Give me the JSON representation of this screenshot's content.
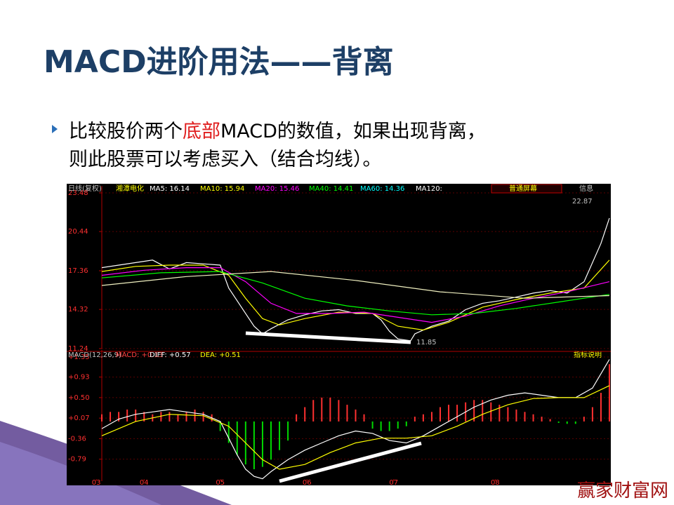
{
  "slide": {
    "title": "MACD进阶用法——背离",
    "bullet": {
      "before": "比较股价两个",
      "highlight": "底部",
      "after": "MACD的数值，如果出现背离，",
      "line2": "则此股票可以考虑买入（结合均线）。"
    },
    "watermark": "赢家财富网"
  },
  "chart_data": [
    {
      "type": "line",
      "header": [
        {
          "text": "日线(复权)",
          "color": "#c0c0c0"
        },
        {
          "text": "湘潭电化",
          "color": "#ffff00"
        },
        {
          "text": "MA5: 16.14",
          "color": "#ffffff"
        },
        {
          "text": "MA10: 15.94",
          "color": "#ffff00"
        },
        {
          "text": "MA20: 15.46",
          "color": "#ff00ff"
        },
        {
          "text": "MA40: 14.41",
          "color": "#00ff00"
        },
        {
          "text": "MA60: 14.36",
          "color": "#00ffff"
        },
        {
          "text": "MA120:",
          "color": "#ffffff"
        }
      ],
      "buttons": [
        "普通屏幕",
        "信息"
      ],
      "annotations": [
        "22.87",
        "11.85"
      ],
      "xlim": [
        0,
        120
      ],
      "ylim": [
        11.24,
        23.48
      ],
      "yticks": [
        {
          "value": 23.48,
          "label": "23.48"
        },
        {
          "value": 20.44,
          "label": "20.44"
        },
        {
          "value": 17.36,
          "label": "17.36"
        },
        {
          "value": 14.32,
          "label": "14.32"
        },
        {
          "value": 11.24,
          "label": "11.24"
        }
      ],
      "series": [
        {
          "color": "#ffffff",
          "x": [
            0,
            4,
            8,
            12,
            16,
            20,
            24,
            28,
            30,
            32,
            34,
            36,
            38,
            40,
            44,
            48,
            52,
            56,
            60,
            64,
            66,
            68,
            70,
            73,
            74,
            78,
            82,
            86,
            90,
            94,
            98,
            102,
            106,
            110,
            114,
            118,
            120
          ],
          "values": [
            17.6,
            17.8,
            18.0,
            18.2,
            17.5,
            18.0,
            17.9,
            17.8,
            16.0,
            15.0,
            14.0,
            13.0,
            12.4,
            12.8,
            13.5,
            13.9,
            14.2,
            14.3,
            14.0,
            14.0,
            13.5,
            12.6,
            12.0,
            11.85,
            12.4,
            13.0,
            13.4,
            14.3,
            14.8,
            15.0,
            15.3,
            15.6,
            15.8,
            15.6,
            16.5,
            19.5,
            21.5
          ]
        },
        {
          "color": "#ffff00",
          "x": [
            0,
            8,
            16,
            24,
            30,
            34,
            38,
            42,
            48,
            56,
            64,
            70,
            76,
            82,
            90,
            98,
            106,
            114,
            120
          ],
          "values": [
            17.3,
            17.7,
            17.8,
            17.8,
            17.0,
            15.2,
            13.6,
            13.1,
            13.6,
            14.1,
            14.0,
            13.0,
            12.7,
            13.3,
            14.5,
            15.1,
            15.6,
            16.0,
            18.2
          ]
        },
        {
          "color": "#ff00ff",
          "x": [
            0,
            10,
            20,
            28,
            34,
            40,
            46,
            54,
            62,
            70,
            78,
            86,
            94,
            102,
            110,
            120
          ],
          "values": [
            17.0,
            17.4,
            17.6,
            17.6,
            16.5,
            14.8,
            14.0,
            14.0,
            14.1,
            13.7,
            13.3,
            13.8,
            14.6,
            15.2,
            15.7,
            16.5
          ]
        },
        {
          "color": "#00ff00",
          "x": [
            0,
            14,
            28,
            38,
            48,
            58,
            68,
            78,
            88,
            98,
            108,
            120
          ],
          "values": [
            16.8,
            17.2,
            17.3,
            16.4,
            15.2,
            14.6,
            14.2,
            13.9,
            14.0,
            14.4,
            14.9,
            15.5
          ]
        },
        {
          "color": "#f0f0c0",
          "x": [
            0,
            20,
            40,
            60,
            80,
            100,
            120
          ],
          "values": [
            16.2,
            16.9,
            17.3,
            16.6,
            15.7,
            15.2,
            15.4
          ]
        }
      ]
    },
    {
      "type": "macd",
      "header": [
        {
          "text": "MACD(12,26,9)",
          "color": "#c0c0c0"
        },
        {
          "text": "MACD: +0.13",
          "color": "#ff4040"
        },
        {
          "text": "DIFF: +0.57",
          "color": "#ffffff"
        },
        {
          "text": "DEA: +0.51",
          "color": "#ffff00"
        }
      ],
      "buttons": [
        "指标说明"
      ],
      "xlim": [
        0,
        120
      ],
      "ylim": [
        -1.25,
        1.35
      ],
      "yticks": [
        {
          "value": 1.35,
          "label": "+1.35"
        },
        {
          "value": 0.93,
          "label": "+0.93"
        },
        {
          "value": 0.5,
          "label": "+0.50"
        },
        {
          "value": 0.07,
          "label": "+0.07"
        },
        {
          "value": -0.36,
          "label": "-0.36"
        },
        {
          "value": -0.79,
          "label": "-0.79"
        }
      ],
      "xticks": [
        {
          "value": -1.3,
          "label": "03"
        },
        {
          "value": 10,
          "label": "04"
        },
        {
          "value": 28,
          "label": "05"
        },
        {
          "value": 48.5,
          "label": "06"
        },
        {
          "value": 69,
          "label": "07"
        },
        {
          "value": 93,
          "label": "08"
        }
      ],
      "bars": {
        "color": "#ff3030",
        "negative_color": "#00d800",
        "step": 2,
        "values": [
          0.15,
          0.2,
          0.2,
          0.25,
          0.25,
          0.2,
          0.15,
          0.2,
          0.2,
          0.15,
          0.2,
          0.25,
          0.2,
          0.15,
          -0.2,
          -0.45,
          -0.7,
          -0.9,
          -1.0,
          -0.95,
          -0.8,
          -0.6,
          -0.4,
          0.15,
          0.3,
          0.45,
          0.5,
          0.5,
          0.45,
          0.35,
          0.25,
          0.15,
          -0.15,
          -0.2,
          -0.2,
          -0.15,
          -0.1,
          0.1,
          0.15,
          0.2,
          0.3,
          0.35,
          0.35,
          0.4,
          0.45,
          0.45,
          0.4,
          0.35,
          0.3,
          0.25,
          0.2,
          0.15,
          0.1,
          0.05,
          -0.03,
          -0.05,
          -0.05,
          0.1,
          0.3,
          0.6,
          1.2
        ]
      },
      "series": [
        {
          "color": "#ffffff",
          "x": [
            0,
            4,
            8,
            12,
            16,
            20,
            24,
            28,
            30,
            32,
            34,
            36,
            38,
            40,
            44,
            48,
            52,
            56,
            60,
            64,
            68,
            72,
            76,
            80,
            84,
            88,
            92,
            96,
            100,
            104,
            108,
            112,
            116,
            120
          ],
          "values": [
            -0.15,
            0.05,
            0.15,
            0.2,
            0.25,
            0.2,
            0.15,
            0.0,
            -0.35,
            -0.7,
            -1.0,
            -1.15,
            -1.2,
            -1.05,
            -0.8,
            -0.6,
            -0.45,
            -0.3,
            -0.2,
            -0.25,
            -0.4,
            -0.45,
            -0.3,
            -0.1,
            0.1,
            0.3,
            0.45,
            0.55,
            0.6,
            0.55,
            0.5,
            0.5,
            0.7,
            1.3
          ]
        },
        {
          "color": "#ffff00",
          "x": [
            0,
            8,
            16,
            24,
            30,
            34,
            38,
            42,
            48,
            54,
            60,
            66,
            72,
            78,
            84,
            90,
            96,
            102,
            108,
            114,
            120
          ],
          "values": [
            -0.3,
            0.0,
            0.15,
            0.12,
            -0.1,
            -0.45,
            -0.8,
            -1.0,
            -0.9,
            -0.65,
            -0.45,
            -0.35,
            -0.35,
            -0.3,
            -0.1,
            0.15,
            0.35,
            0.48,
            0.5,
            0.5,
            0.75
          ]
        }
      ]
    }
  ]
}
